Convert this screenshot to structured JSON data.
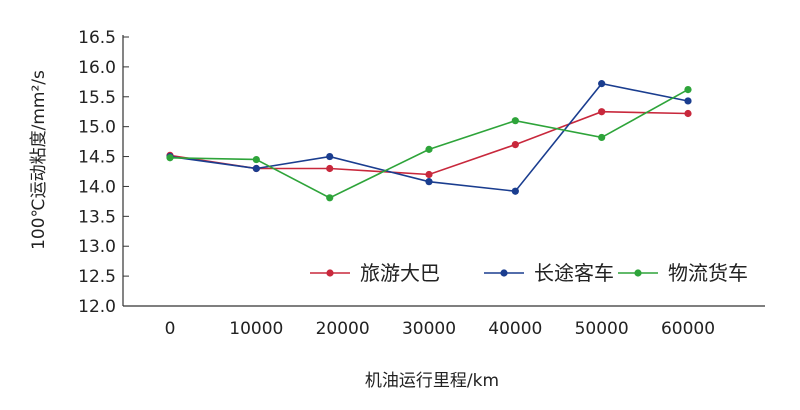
{
  "chart_data": {
    "type": "line",
    "xlabel": "机油运行里程/km",
    "ylabel": "100℃运动粘度/mm²/s",
    "x": [
      0,
      10000,
      20000,
      30000,
      40000,
      50000,
      60000
    ],
    "x_tick_labels": [
      "0",
      "10000",
      "20000",
      "30000",
      "40000",
      "50000",
      "60000"
    ],
    "ylim": [
      12.0,
      16.5
    ],
    "y_ticks": [
      12.0,
      12.5,
      13.0,
      13.5,
      14.0,
      14.5,
      15.0,
      15.5,
      16.0,
      16.5
    ],
    "y_tick_labels": [
      "12.0",
      "12.5",
      "13.0",
      "13.5",
      "14.0",
      "14.5",
      "15.0",
      "15.5",
      "16.0",
      "16.5"
    ],
    "grid": false,
    "legend_position": "bottom-right",
    "series": [
      {
        "name": "旅游大巴",
        "color": "#c8283c",
        "points": [
          [
            0,
            14.52
          ],
          [
            10000,
            14.3
          ],
          [
            18500,
            14.3
          ],
          [
            30000,
            14.2
          ],
          [
            40000,
            14.7
          ],
          [
            50000,
            15.25
          ],
          [
            60000,
            15.22
          ]
        ]
      },
      {
        "name": "长途客车",
        "color": "#1a3d8f",
        "points": [
          [
            0,
            14.5
          ],
          [
            10000,
            14.3
          ],
          [
            18500,
            14.5
          ],
          [
            30000,
            14.08
          ],
          [
            40000,
            13.92
          ],
          [
            50000,
            15.72
          ],
          [
            60000,
            15.43
          ]
        ]
      },
      {
        "name": "物流货车",
        "color": "#2ea43a",
        "points": [
          [
            0,
            14.48
          ],
          [
            10000,
            14.45
          ],
          [
            18500,
            13.81
          ],
          [
            30000,
            14.62
          ],
          [
            40000,
            15.1
          ],
          [
            50000,
            14.82
          ],
          [
            60000,
            15.62
          ]
        ]
      }
    ]
  }
}
